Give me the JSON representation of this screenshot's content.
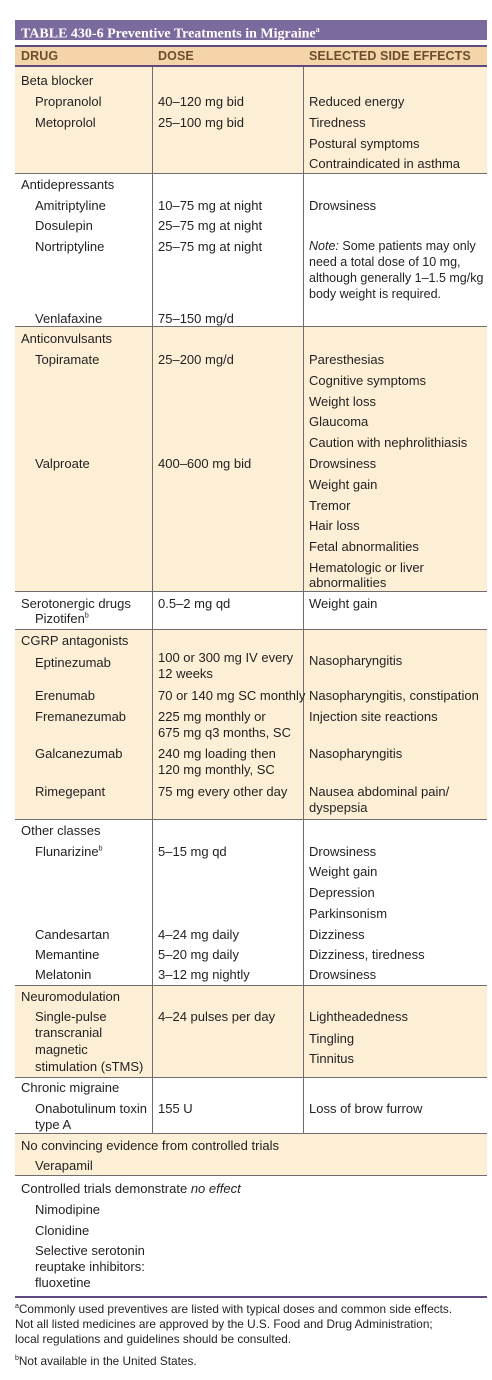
{
  "table": {
    "title": "TABLE 430-6  Preventive Treatments in Migraine",
    "title_sup": "a",
    "headers": {
      "drug": "DRUG",
      "dose": "DOSE",
      "effects": "SELECTED SIDE EFFECTS"
    },
    "beta": {
      "class": "Beta blocker",
      "propranolol": "Propranolol",
      "propranolol_dose": "40–120 mg bid",
      "metoprolol": "Metoprolol",
      "metoprolol_dose": "25–100 mg bid",
      "effects": [
        "Reduced energy",
        "Tiredness",
        "Postural symptoms",
        "Contraindicated in asthma"
      ]
    },
    "anti": {
      "class": "Antidepressants",
      "amitriptyline": "Amitriptyline",
      "amitriptyline_dose": "10–75 mg at night",
      "amitriptyline_effect": "Drowsiness",
      "dosulepin": "Dosulepin",
      "dosulepin_dose": "25–75 mg at night",
      "nortriptyline": "Nortriptyline",
      "nortriptyline_dose": "25–75 mg at night",
      "note_label": "Note:",
      "note_lines": [
        " Some patients may only",
        "need a total dose of 10 mg,",
        "although generally 1–1.5 mg/kg",
        "body weight is required."
      ],
      "venlafaxine": "Venlafaxine",
      "venlafaxine_dose": "75–150 mg/d"
    },
    "conv": {
      "class": "Anticonvulsants",
      "topiramate": "Topiramate",
      "topiramate_dose": "25–200 mg/d",
      "topiramate_effects": [
        "Paresthesias",
        "Cognitive symptoms",
        "Weight loss",
        "Glaucoma",
        "Caution with nephrolithiasis"
      ],
      "valproate": "Valproate",
      "valproate_dose": "400–600 mg bid",
      "valproate_effects": [
        "Drowsiness",
        "Weight gain",
        "Tremor",
        "Hair loss",
        "Fetal abnormalities",
        "Hematologic or liver",
        "abnormalities"
      ]
    },
    "sero": {
      "class": "Serotonergic drugs",
      "pizotifen": "Pizotifen",
      "pizotifen_sup": "b",
      "dose": "0.5–2 mg qd",
      "effect": "Weight gain"
    },
    "cgrp": {
      "class": "CGRP antagonists",
      "eptinezumab": "Eptinezumab",
      "eptinezumab_dose": [
        "100 or 300 mg IV every",
        "12 weeks"
      ],
      "eptinezumab_effect": "Nasopharyngitis",
      "erenumab": "Erenumab",
      "erenumab_dose": "70 or 140 mg SC monthly",
      "erenumab_effect": "Nasopharyngitis, constipation",
      "fremanezumab": "Fremanezumab",
      "fremanezumab_dose": [
        "225 mg monthly or",
        "675 mg q3 months, SC"
      ],
      "fremanezumab_effect": "Injection site reactions",
      "galcanezumab": "Galcanezumab",
      "galcanezumab_dose": [
        "240 mg loading then",
        "120 mg monthly, SC"
      ],
      "galcanezumab_effect": "Nasopharyngitis",
      "rimegepant": "Rimegepant",
      "rimegepant_dose": "75 mg every other day",
      "rimegepant_effect": [
        "Nausea abdominal pain/",
        "dyspepsia"
      ]
    },
    "other": {
      "class": "Other classes",
      "flunarizine": "Flunarizine",
      "flunarizine_sup": "b",
      "flunarizine_dose": "5–15 mg qd",
      "flunarizine_effects": [
        "Drowsiness",
        "Weight gain",
        "Depression",
        "Parkinsonism"
      ],
      "candesartan": "Candesartan",
      "candesartan_dose": "4–24 mg daily",
      "candesartan_effect": "Dizziness",
      "memantine": "Memantine",
      "memantine_dose": "5–20 mg daily",
      "memantine_effect": "Dizziness, tiredness",
      "melatonin": "Melatonin",
      "melatonin_dose": "3–12 mg nightly",
      "melatonin_effect": "Drowsiness"
    },
    "neuro": {
      "class": "Neuromodulation",
      "name_lines": [
        "Single-pulse",
        "transcranial",
        "magnetic",
        "stimulation (sTMS)"
      ],
      "dose": "4–24 pulses per day",
      "effects": [
        "Lightheadedness",
        "Tingling",
        "Tinnitus"
      ]
    },
    "chronic": {
      "class": "Chronic migraine",
      "name_lines": [
        "Onabotulinum toxin",
        "type A"
      ],
      "dose": "155 U",
      "effect": "Loss of brow furrow"
    },
    "noev": {
      "label": "No convincing evidence from controlled trials",
      "drug": "Verapamil"
    },
    "noeffect": {
      "label_pre": "Controlled trials demonstrate ",
      "label_em": "no effect",
      "drugs": [
        "Nimodipine",
        "Clonidine",
        "Selective serotonin",
        "reuptake inhibitors:",
        "fluoxetine"
      ]
    },
    "footnotes": {
      "a_mark": "a",
      "a_lines": [
        "Commonly used preventives are listed with typical doses and common side effects.",
        "Not all listed medicines are approved by the U.S. Food and Drug Administration;",
        "local regulations and guidelines should be consulted."
      ],
      "b_mark": "b",
      "b_text": "Not available in the United States."
    }
  }
}
